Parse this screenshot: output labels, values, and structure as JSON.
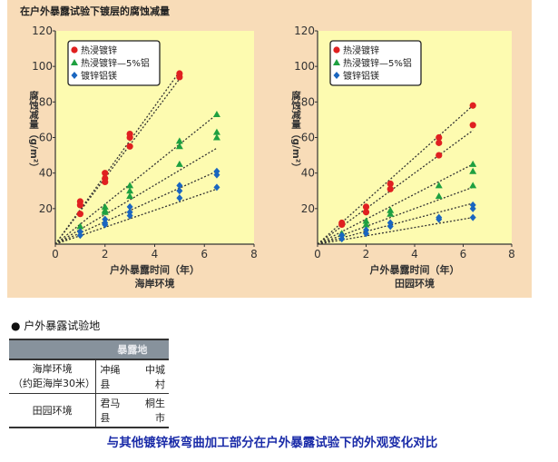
{
  "title": "在户外暴露试验下镀层的腐蚀减量",
  "colors": {
    "热浸镀锌": "#e02020",
    "热浸镀锌—5%铝": "#1ea040",
    "镀锌铝镁": "#1a66c0",
    "plot_bg": "#fdfbb0",
    "panel_bg": "#f8dcb8"
  },
  "chart_data": [
    {
      "type": "scatter",
      "subtitle": "海岸环境",
      "xlabel": "户外暴露时间（年）",
      "ylabel": "腐蚀减量（g/m²）",
      "xlim": [
        0,
        8
      ],
      "ylim": [
        0,
        120
      ],
      "xticks": [
        0,
        2,
        4,
        6,
        8
      ],
      "yticks": [
        20,
        40,
        60,
        80,
        100,
        120
      ],
      "legend": "top-left",
      "series": [
        {
          "name": "热浸镀锌",
          "marker": "circle",
          "points": [
            [
              1,
              24
            ],
            [
              1,
              22
            ],
            [
              1,
              17
            ],
            [
              2,
              40
            ],
            [
              2,
              37
            ],
            [
              2,
              35
            ],
            [
              3,
              62
            ],
            [
              3,
              60
            ],
            [
              3,
              55
            ],
            [
              5,
              96
            ],
            [
              5,
              94
            ]
          ],
          "trendlines": [
            [
              [
                0,
                0
              ],
              [
                5,
                97
              ]
            ],
            [
              [
                0,
                0
              ],
              [
                5,
                93
              ]
            ]
          ]
        },
        {
          "name": "热浸镀锌—5%铝",
          "marker": "triangle",
          "points": [
            [
              1,
              10
            ],
            [
              2,
              21
            ],
            [
              2,
              19
            ],
            [
              2,
              18
            ],
            [
              3,
              33
            ],
            [
              3,
              30
            ],
            [
              3,
              27
            ],
            [
              5,
              58
            ],
            [
              5,
              55
            ],
            [
              5,
              45
            ],
            [
              6.5,
              73
            ],
            [
              6.5,
              63
            ],
            [
              6.5,
              60
            ]
          ],
          "trendlines": [
            [
              [
                0,
                0
              ],
              [
                6.5,
                73
              ]
            ],
            [
              [
                0,
                0
              ],
              [
                6.5,
                54
              ]
            ]
          ]
        },
        {
          "name": "镀锌铝镁",
          "marker": "diamond",
          "points": [
            [
              1,
              7
            ],
            [
              1,
              5
            ],
            [
              2,
              14
            ],
            [
              2,
              12
            ],
            [
              2,
              11
            ],
            [
              3,
              21
            ],
            [
              3,
              18
            ],
            [
              3,
              16
            ],
            [
              5,
              33
            ],
            [
              5,
              30
            ],
            [
              5,
              26
            ],
            [
              6.5,
              41
            ],
            [
              6.5,
              39
            ],
            [
              6.5,
              32
            ]
          ],
          "trendlines": [
            [
              [
                0,
                0
              ],
              [
                6.5,
                41
              ]
            ],
            [
              [
                0,
                0
              ],
              [
                6.5,
                31
              ]
            ]
          ]
        }
      ]
    },
    {
      "type": "scatter",
      "subtitle": "田园环境",
      "xlabel": "户外暴露时间（年）",
      "ylabel": "腐蚀减量（g/m²）",
      "xlim": [
        0,
        8
      ],
      "ylim": [
        0,
        120
      ],
      "xticks": [
        0,
        2,
        4,
        6,
        8
      ],
      "yticks": [
        20,
        40,
        60,
        80,
        100,
        120
      ],
      "legend": "top-left",
      "series": [
        {
          "name": "热浸镀锌",
          "marker": "circle",
          "points": [
            [
              1,
              12
            ],
            [
              1,
              11
            ],
            [
              2,
              21
            ],
            [
              2,
              18
            ],
            [
              3,
              34
            ],
            [
              3,
              31
            ],
            [
              5,
              60
            ],
            [
              5,
              57
            ],
            [
              5,
              50
            ],
            [
              6.4,
              78
            ],
            [
              6.4,
              67
            ]
          ],
          "trendlines": [
            [
              [
                0,
                0
              ],
              [
                6.4,
                78
              ]
            ],
            [
              [
                0,
                0
              ],
              [
                6.4,
                64
              ]
            ]
          ]
        },
        {
          "name": "热浸镀锌—5%铝",
          "marker": "triangle",
          "points": [
            [
              1,
              6
            ],
            [
              2,
              13
            ],
            [
              2,
              11
            ],
            [
              3,
              19
            ],
            [
              3,
              17
            ],
            [
              5,
              33
            ],
            [
              5,
              27
            ],
            [
              6.4,
              45
            ],
            [
              6.4,
              41
            ],
            [
              6.4,
              33
            ]
          ],
          "trendlines": [
            [
              [
                0,
                0
              ],
              [
                6.4,
                45
              ]
            ],
            [
              [
                0,
                0
              ],
              [
                6.4,
                32
              ]
            ]
          ]
        },
        {
          "name": "镀锌铝镁",
          "marker": "diamond",
          "points": [
            [
              1,
              5
            ],
            [
              1,
              3
            ],
            [
              2,
              8
            ],
            [
              2,
              6
            ],
            [
              3,
              12
            ],
            [
              3,
              10
            ],
            [
              5,
              15
            ],
            [
              5,
              14
            ],
            [
              6.4,
              22
            ],
            [
              6.4,
              20
            ],
            [
              6.4,
              15
            ]
          ],
          "trendlines": [
            [
              [
                0,
                0
              ],
              [
                6.4,
                23
              ]
            ],
            [
              [
                0,
                0
              ],
              [
                6.4,
                15
              ]
            ]
          ]
        }
      ]
    }
  ],
  "section_title": "户外暴露试验地",
  "table": {
    "header": [
      "",
      "暴露地"
    ],
    "rows": [
      [
        "海岸环境\n（约距海岸30米）",
        "冲绳县",
        "中城村"
      ],
      [
        "田园环境",
        "君马县",
        "桐生市"
      ]
    ]
  },
  "caption": "与其他镀锌板弯曲加工部分在户外暴露试验下的外观变化对比"
}
